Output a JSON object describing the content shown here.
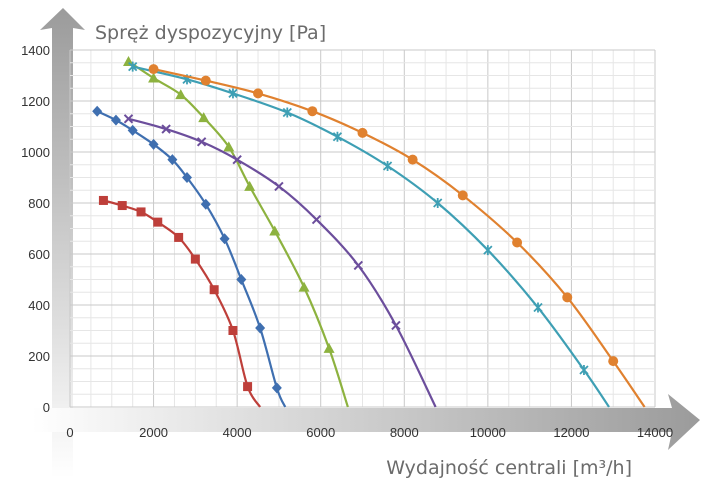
{
  "chart_data": {
    "type": "line",
    "title": "",
    "xlabel": "Wydajność centrali [m³/h]",
    "ylabel": "Spręż dyspozycyjny [Pa]",
    "xlim": [
      0,
      14000
    ],
    "ylim": [
      0,
      1400
    ],
    "x_ticks": [
      "0",
      "2000",
      "4000",
      "6000",
      "8000",
      "10000",
      "12000",
      "14000"
    ],
    "y_ticks": [
      "0",
      "200",
      "400",
      "600",
      "800",
      "1000",
      "1200",
      "1400"
    ],
    "grid": true,
    "legend": "none",
    "series": [
      {
        "color": "#be3f3a",
        "marker": "square",
        "points": [
          [
            800,
            810
          ],
          [
            1250,
            790
          ],
          [
            1700,
            765
          ],
          [
            2100,
            725
          ],
          [
            2600,
            665
          ],
          [
            3000,
            580
          ],
          [
            3450,
            460
          ],
          [
            3900,
            300
          ],
          [
            4250,
            80
          ]
        ],
        "curve_end": [
          4550,
          0
        ]
      },
      {
        "color": "#3f6fb0",
        "marker": "diamond",
        "points": [
          [
            650,
            1160
          ],
          [
            1100,
            1125
          ],
          [
            1500,
            1085
          ],
          [
            2000,
            1030
          ],
          [
            2450,
            970
          ],
          [
            2800,
            900
          ],
          [
            3250,
            795
          ],
          [
            3700,
            660
          ],
          [
            4100,
            500
          ],
          [
            4550,
            310
          ],
          [
            4950,
            75
          ]
        ],
        "curve_end": [
          5150,
          0
        ]
      },
      {
        "color": "#8db23f",
        "marker": "triangle",
        "points": [
          [
            1400,
            1355
          ],
          [
            2000,
            1290
          ],
          [
            2650,
            1225
          ],
          [
            3200,
            1135
          ],
          [
            3800,
            1020
          ],
          [
            4300,
            865
          ],
          [
            4900,
            690
          ],
          [
            5600,
            470
          ],
          [
            6200,
            230
          ]
        ],
        "curve_end": [
          6650,
          0
        ]
      },
      {
        "color": "#6c4e9c",
        "marker": "x",
        "points": [
          [
            1400,
            1130
          ],
          [
            2300,
            1090
          ],
          [
            3150,
            1040
          ],
          [
            4000,
            970
          ],
          [
            5000,
            865
          ],
          [
            5900,
            735
          ],
          [
            6900,
            555
          ],
          [
            7800,
            320
          ]
        ],
        "curve_end": [
          8750,
          0
        ]
      },
      {
        "color": "#3e9fb4",
        "marker": "asterisk",
        "points": [
          [
            1500,
            1335
          ],
          [
            2800,
            1285
          ],
          [
            3900,
            1230
          ],
          [
            5200,
            1155
          ],
          [
            6400,
            1060
          ],
          [
            7600,
            945
          ],
          [
            8800,
            800
          ],
          [
            10000,
            615
          ],
          [
            11200,
            390
          ],
          [
            12300,
            145
          ]
        ],
        "curve_end": [
          12900,
          0
        ]
      },
      {
        "color": "#e0812f",
        "marker": "circle",
        "points": [
          [
            2000,
            1325
          ],
          [
            3250,
            1280
          ],
          [
            4500,
            1230
          ],
          [
            5800,
            1160
          ],
          [
            7000,
            1075
          ],
          [
            8200,
            970
          ],
          [
            9400,
            830
          ],
          [
            10700,
            645
          ],
          [
            11900,
            430
          ],
          [
            13000,
            180
          ]
        ],
        "curve_end": [
          13750,
          0
        ]
      }
    ]
  }
}
